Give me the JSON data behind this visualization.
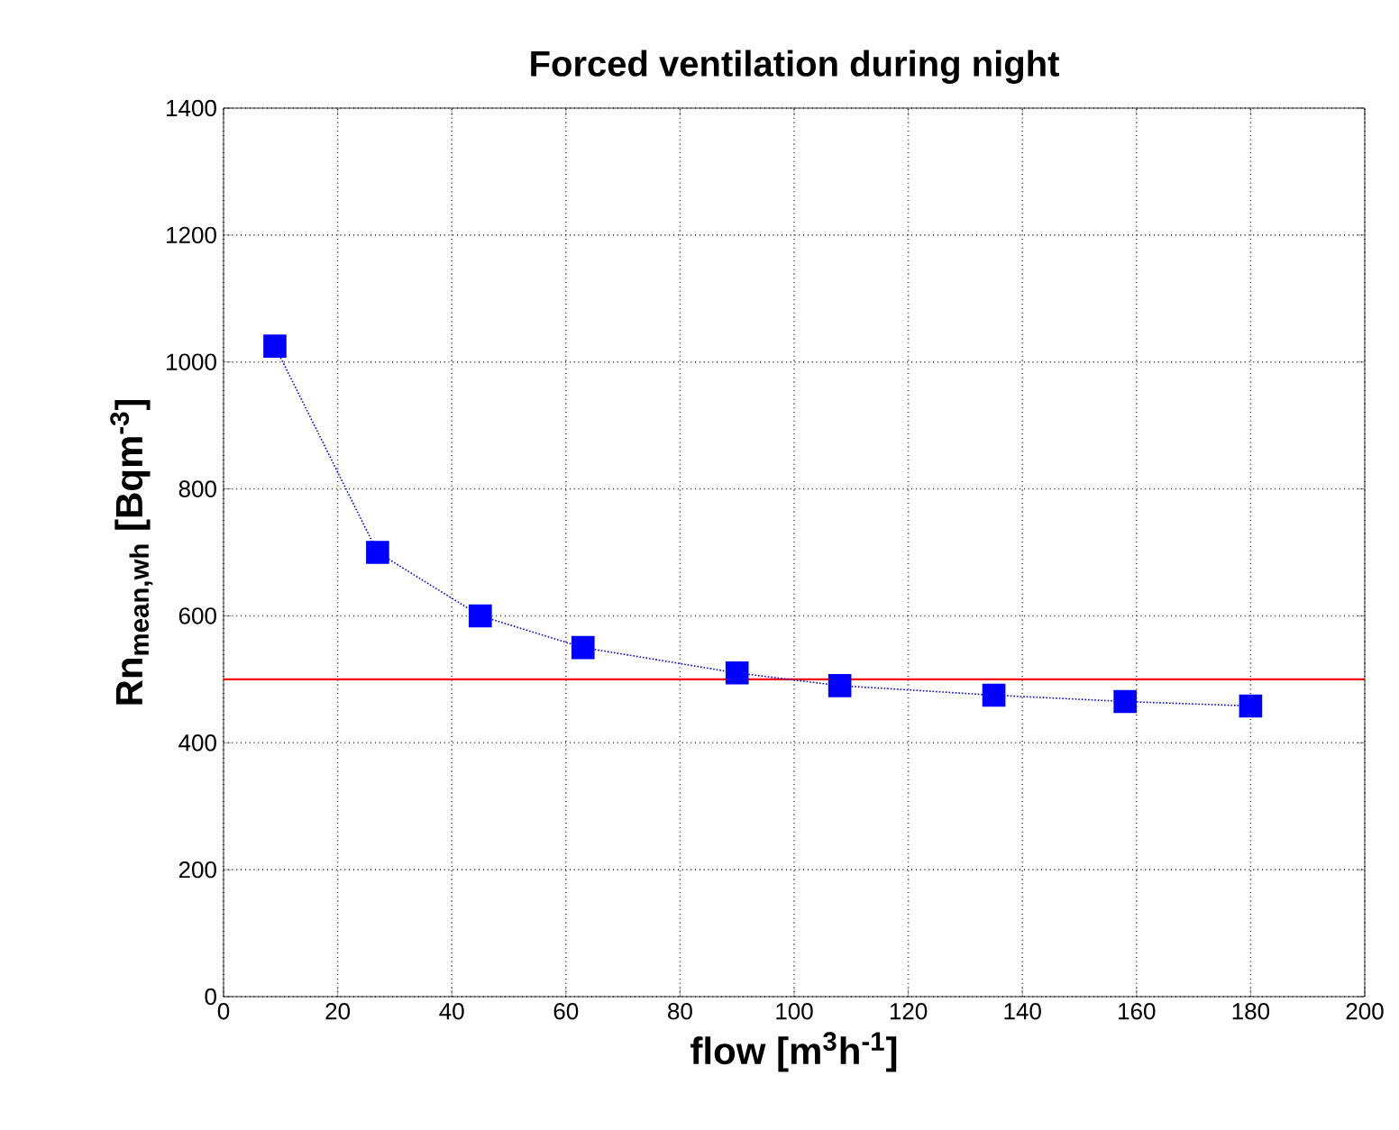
{
  "chart_data": {
    "type": "line",
    "title": "Forced ventilation during night",
    "xlabel": "flow [m$^{3}$h$^{-1}$]",
    "ylabel": "Rn$_{mean,wh}$ [Bqm$^{-3}$]",
    "x": [
      9,
      27,
      45,
      63,
      90,
      108,
      135,
      158,
      180
    ],
    "series": [
      {
        "color": "#0000ff",
        "values": [
          1025,
          700,
          600,
          550,
          510,
          490,
          475,
          465,
          458
        ]
      }
    ],
    "xlim": [
      0,
      200
    ],
    "xticks": [
      0,
      20,
      40,
      60,
      80,
      100,
      120,
      140,
      160,
      180,
      200
    ],
    "ylim": [
      0,
      1400
    ],
    "yticks": [
      0,
      200,
      400,
      600,
      800,
      1000,
      1200,
      1400
    ],
    "ref_lines": [
      {
        "axis": "y",
        "value": 500,
        "color": "#ff0000"
      }
    ],
    "grid": true,
    "marker": "square",
    "line_style": "dotted"
  }
}
